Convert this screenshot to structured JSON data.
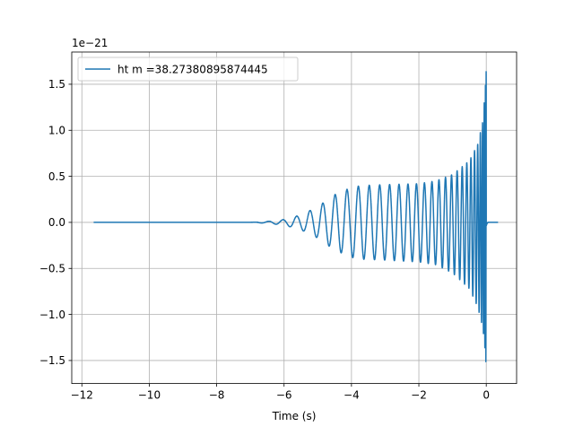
{
  "chart_data": {
    "type": "line",
    "title": "",
    "xlabel": "Time (s)",
    "ylabel": "",
    "offset_text": "1e−21",
    "y_scale": 1e-21,
    "xlim": [
      -12.3,
      0.9
    ],
    "ylim": [
      -1.75,
      1.85
    ],
    "grid": true,
    "legend_position": "upper-left",
    "x_ticks": [
      -12,
      -10,
      -8,
      -6,
      -4,
      -2,
      0
    ],
    "x_tick_labels": [
      "−12",
      "−10",
      "−8",
      "−6",
      "−4",
      "−2",
      "0"
    ],
    "y_ticks": [
      -1.5,
      -1.0,
      -0.5,
      0.0,
      0.5,
      1.0,
      1.5
    ],
    "y_tick_labels": [
      "−1.5",
      "−1.0",
      "−0.5",
      "0.0",
      "0.5",
      "1.0",
      "1.5"
    ],
    "series": [
      {
        "name": "ht m =38.27380895874445",
        "color": "#1f77b4",
        "x_range": [
          -11.65,
          0.35
        ],
        "merger_time": 0.0,
        "envelope": {
          "x": [
            -11.65,
            -7.0,
            -6.5,
            -6.0,
            -5.5,
            -5.0,
            -4.5,
            -4.0,
            -3.7,
            -3.0,
            -2.0,
            -1.5,
            -1.0,
            -0.5,
            -0.25,
            -0.1,
            -0.03,
            0.0,
            0.02,
            0.05,
            0.35
          ],
          "upper": [
            0.0,
            0.0,
            0.01,
            0.03,
            0.08,
            0.17,
            0.3,
            0.38,
            0.4,
            0.41,
            0.42,
            0.45,
            0.52,
            0.67,
            0.85,
            1.1,
            1.45,
            1.66,
            0.6,
            0.0,
            0.0
          ],
          "lower": [
            0.0,
            0.0,
            -0.01,
            -0.03,
            -0.08,
            -0.17,
            -0.3,
            -0.38,
            -0.4,
            -0.41,
            -0.43,
            -0.46,
            -0.55,
            -0.72,
            -0.92,
            -1.15,
            -1.4,
            -1.59,
            -0.6,
            0.0,
            0.0
          ]
        }
      }
    ]
  }
}
